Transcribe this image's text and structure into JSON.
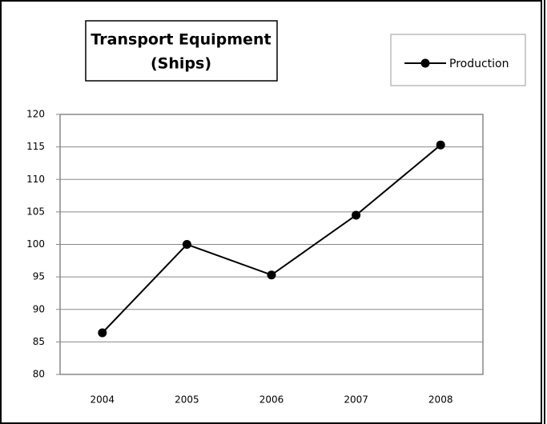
{
  "chart_data": {
    "type": "line",
    "title": [
      "Transport Equipment",
      "(Ships)"
    ],
    "categories": [
      "2004",
      "2005",
      "2006",
      "2007",
      "2008"
    ],
    "series": [
      {
        "name": "Production",
        "color": "#000000",
        "values": [
          86.4,
          100,
          95.3,
          104.5,
          115.3
        ]
      }
    ],
    "ylim": [
      80,
      120
    ],
    "yticks": [
      80,
      85,
      90,
      95,
      100,
      105,
      110,
      115,
      120
    ],
    "grid": true,
    "legend": "upper right"
  }
}
